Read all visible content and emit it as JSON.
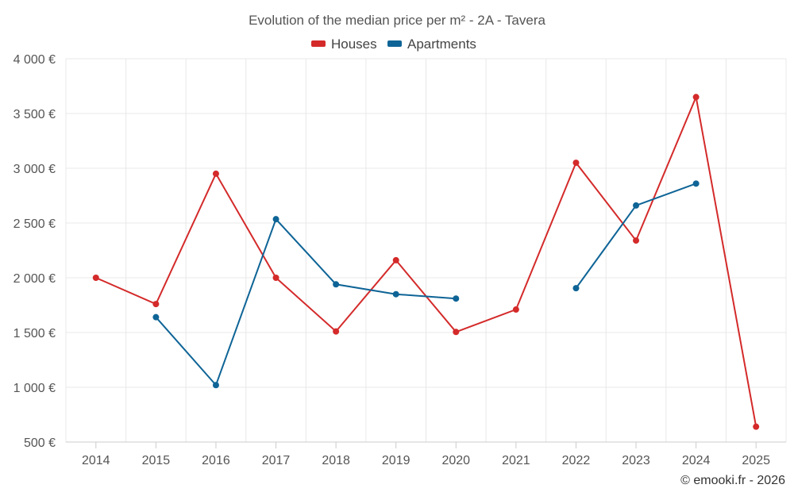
{
  "chart_data": {
    "type": "line",
    "title": "Evolution of the median price per m² - 2A - Tavera",
    "categories": [
      "2014",
      "2015",
      "2016",
      "2017",
      "2018",
      "2019",
      "2020",
      "2021",
      "2022",
      "2023",
      "2024",
      "2025"
    ],
    "y_tick_labels": [
      "500 €",
      "1 000 €",
      "1 500 €",
      "2 000 €",
      "2 500 €",
      "3 000 €",
      "3 500 €",
      "4 000 €"
    ],
    "y_ticks": [
      500,
      1000,
      1500,
      2000,
      2500,
      3000,
      3500,
      4000
    ],
    "ylim": [
      500,
      4000
    ],
    "legend_position": "top-center",
    "grid": true,
    "series": [
      {
        "name": "Houses",
        "color": "#d42a2a",
        "values": [
          2000,
          1760,
          2950,
          2000,
          1510,
          2160,
          1505,
          1710,
          3050,
          2340,
          3650,
          640
        ]
      },
      {
        "name": "Apartments",
        "color": "#0e6496",
        "values": [
          null,
          1640,
          1020,
          2535,
          1940,
          1850,
          1810,
          null,
          1905,
          2660,
          2860,
          null
        ]
      }
    ]
  },
  "credit": "© emooki.fr - 2026"
}
